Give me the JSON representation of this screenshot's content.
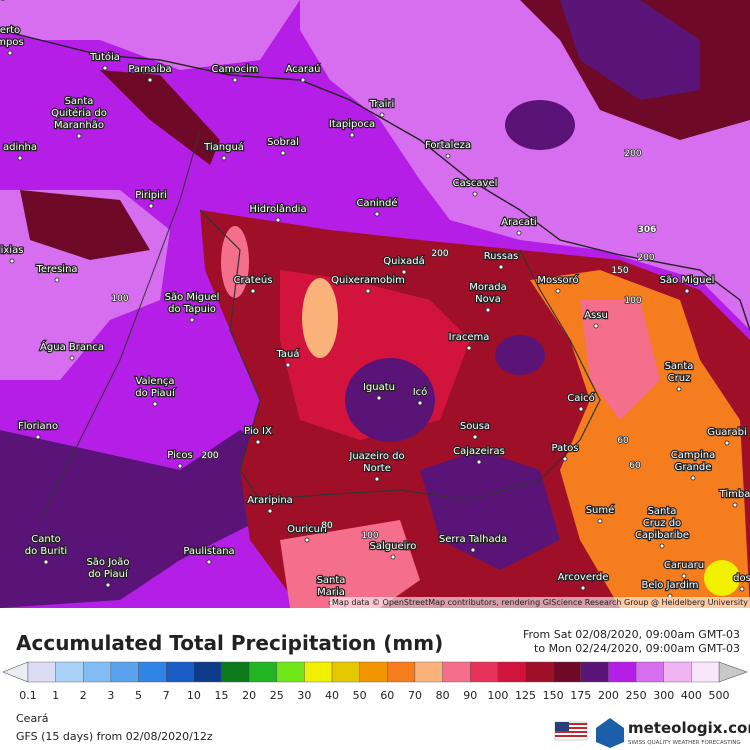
{
  "map": {
    "cities": [
      [
        "erto",
        "mpos"
      ],
      [
        "Tutóia"
      ],
      [
        "Parnaíba"
      ],
      [
        "Camocim"
      ],
      [
        "Acaraú"
      ],
      [
        "Trairi"
      ],
      [
        "Itapipoca"
      ],
      [
        "Santa",
        "Quitéria do",
        "Maranhão"
      ],
      [
        "adinha"
      ],
      [
        "Tianguá"
      ],
      [
        "Sobral"
      ],
      [
        "Fortaleza"
      ],
      [
        "Cascavel"
      ],
      [
        "Piripiri"
      ],
      [
        "Hidrolândia"
      ],
      [
        "Canindé"
      ],
      [
        "Aracati"
      ],
      [
        "Russas"
      ],
      [
        "Quixadá"
      ],
      [
        "ixias"
      ],
      [
        "Teresina"
      ],
      [
        "Crateús"
      ],
      [
        "Quixeramobim"
      ],
      [
        "Morada",
        "Nova"
      ],
      [
        "Mossoró"
      ],
      [
        "São Miguel"
      ],
      [
        "São Miguel",
        "do Tapuio"
      ],
      [
        "Assu"
      ],
      [
        "Iracema"
      ],
      [
        "Água Branca"
      ],
      [
        "Tauá"
      ],
      [
        "Santa",
        "Cruz"
      ],
      [
        "Valença",
        "do Piauí"
      ],
      [
        "Iguatu"
      ],
      [
        "Icó"
      ],
      [
        "Caicó"
      ],
      [
        "Floriano"
      ],
      [
        "Pio IX"
      ],
      [
        "Sousa"
      ],
      [
        "Guarabi"
      ],
      [
        "Patos"
      ],
      [
        "Cajazeiras"
      ],
      [
        "Picos"
      ],
      [
        "Juazeiro do",
        "Norte"
      ],
      [
        "Campina",
        "Grande"
      ],
      [
        "Timba"
      ],
      [
        "Araripina"
      ],
      [
        "Sumé"
      ],
      [
        "Ouricuri"
      ],
      [
        "Santa",
        "Cruz do",
        "Capibaribe"
      ],
      [
        "Canto",
        "do Buriti"
      ],
      [
        "Serra Talhada"
      ],
      [
        "Salgueiro"
      ],
      [
        "Paulistana"
      ],
      [
        "São João",
        "do Piauí"
      ],
      [
        "Caruaru"
      ],
      [
        "Arcoverde"
      ],
      [
        "Belo Jardim"
      ],
      [
        "Santa",
        "Maria"
      ],
      [
        "dos"
      ]
    ],
    "contour_labels": [
      200,
      306,
      200,
      100,
      200,
      150,
      100,
      200,
      60,
      60,
      80,
      100,
      80
    ],
    "attribution": "Map data © OpenStreetMap contributors, rendering GIScience Research Group @ Heidelberg University"
  },
  "legend": {
    "title": "Accumulated Total Precipitation (mm)",
    "from": "From Sat 02/08/2020, 09:00am GMT-03",
    "to": "to Mon 02/24/2020, 09:00am GMT-03",
    "ticks": [
      0.1,
      1,
      2,
      3,
      5,
      7,
      10,
      15,
      20,
      25,
      30,
      40,
      50,
      60,
      70,
      80,
      90,
      100,
      125,
      150,
      175,
      200,
      250,
      300,
      400,
      500
    ],
    "colors": [
      "#dcdcf5",
      "#aad2f8",
      "#82bcf4",
      "#5aa2ee",
      "#2f84e6",
      "#1a5cc6",
      "#0f3c8a",
      "#0b7a1a",
      "#22b422",
      "#6ee619",
      "#f0f000",
      "#e6c800",
      "#f29600",
      "#f57d1e",
      "#f9b27a",
      "#f56e8c",
      "#e8325a",
      "#d2143c",
      "#a00f28",
      "#6e0a28",
      "#5a1478",
      "#b41ee6",
      "#d76ef0",
      "#f0b4f5",
      "#fae6fa"
    ],
    "below_color": "#ececf4",
    "above_color": "#c8c8c8"
  },
  "footer": {
    "region": "Ceará",
    "model": "GFS (15 days) from 02/08/2020/12z",
    "brand": "meteologix.com",
    "tagline": "SWISS QUALITY WEATHER FORECASTING"
  }
}
